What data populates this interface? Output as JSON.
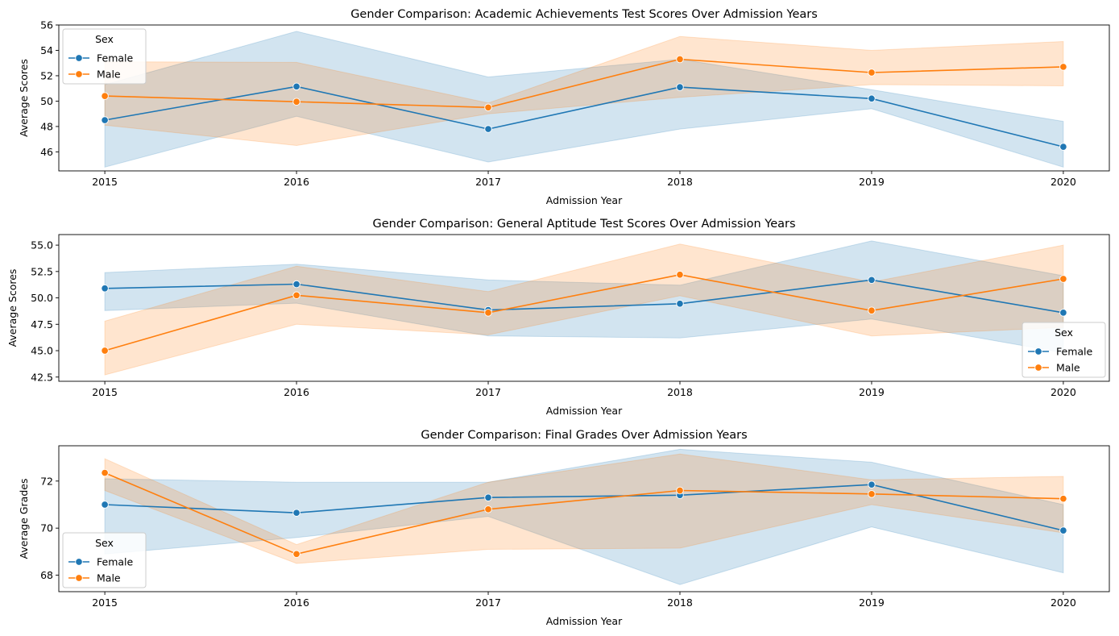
{
  "chart_data": [
    {
      "type": "line",
      "title": "Gender Comparison: Academic Achievements Test Scores Over Admission Years",
      "xlabel": "Admission Year",
      "ylabel": "Average Scores",
      "x": [
        2015,
        2016,
        2017,
        2018,
        2019,
        2020
      ],
      "xlim": [
        2014.76,
        2020.24
      ],
      "ylim": [
        44.5,
        56.0
      ],
      "yticks": [
        46,
        48,
        50,
        52,
        54,
        56
      ],
      "ytick_labels": [
        "46",
        "48",
        "50",
        "52",
        "54",
        "56"
      ],
      "legend": {
        "title": "Sex",
        "placement": "upper-left"
      },
      "series": [
        {
          "name": "Female",
          "color": "#1f77b4",
          "values": [
            48.5,
            51.15,
            47.8,
            51.1,
            50.2,
            46.4
          ],
          "ci_low": [
            44.8,
            48.8,
            45.2,
            47.8,
            49.4,
            44.8
          ],
          "ci_high": [
            51.3,
            55.5,
            51.9,
            53.3,
            50.9,
            48.4
          ]
        },
        {
          "name": "Male",
          "color": "#ff7f0e",
          "values": [
            50.4,
            49.95,
            49.5,
            53.3,
            52.25,
            52.7
          ],
          "ci_low": [
            48.1,
            46.5,
            49.0,
            50.3,
            51.3,
            51.2
          ],
          "ci_high": [
            53.1,
            53.05,
            49.85,
            55.1,
            54.0,
            54.7
          ]
        }
      ]
    },
    {
      "type": "line",
      "title": "Gender Comparison: General Aptitude Test Scores Over Admission Years",
      "xlabel": "Admission Year",
      "ylabel": "Average Scores",
      "x": [
        2015,
        2016,
        2017,
        2018,
        2019,
        2020
      ],
      "xlim": [
        2014.76,
        2020.24
      ],
      "ylim": [
        42.1,
        56.0
      ],
      "yticks": [
        42.5,
        45.0,
        47.5,
        50.0,
        52.5,
        55.0
      ],
      "ytick_labels": [
        "42.5",
        "45.0",
        "47.5",
        "50.0",
        "52.5",
        "55.0"
      ],
      "legend": {
        "title": "Sex",
        "placement": "lower-right"
      },
      "series": [
        {
          "name": "Female",
          "color": "#1f77b4",
          "values": [
            50.9,
            51.3,
            48.85,
            49.45,
            51.7,
            48.6
          ],
          "ci_low": [
            48.8,
            49.5,
            46.4,
            46.2,
            48.0,
            44.8
          ],
          "ci_high": [
            52.4,
            53.2,
            51.7,
            51.2,
            55.4,
            52.1
          ]
        },
        {
          "name": "Male",
          "color": "#ff7f0e",
          "values": [
            45.0,
            50.25,
            48.6,
            52.2,
            48.8,
            51.8
          ],
          "ci_low": [
            42.7,
            47.5,
            46.5,
            50.2,
            46.4,
            47.2
          ],
          "ci_high": [
            47.8,
            53.0,
            50.6,
            55.1,
            51.5,
            55.0
          ]
        }
      ]
    },
    {
      "type": "line",
      "title": "Gender Comparison: Final Grades Over Admission Years",
      "xlabel": "Admission Year",
      "ylabel": "Average Grades",
      "x": [
        2015,
        2016,
        2017,
        2018,
        2019,
        2020
      ],
      "xlim": [
        2014.76,
        2020.24
      ],
      "ylim": [
        67.3,
        73.5
      ],
      "yticks": [
        68,
        70,
        72
      ],
      "ytick_labels": [
        "68",
        "70",
        "72"
      ],
      "legend": {
        "title": "Sex",
        "placement": "lower-left"
      },
      "series": [
        {
          "name": "Female",
          "color": "#1f77b4",
          "values": [
            71.0,
            70.65,
            71.3,
            71.4,
            71.85,
            69.9
          ],
          "ci_low": [
            68.9,
            69.6,
            70.5,
            67.6,
            70.05,
            68.1
          ],
          "ci_high": [
            72.1,
            71.95,
            71.95,
            73.35,
            72.8,
            71.0
          ]
        },
        {
          "name": "Male",
          "color": "#ff7f0e",
          "values": [
            72.35,
            68.9,
            70.8,
            71.6,
            71.45,
            71.25
          ],
          "ci_low": [
            71.6,
            68.5,
            69.1,
            69.15,
            71.0,
            69.8
          ],
          "ci_high": [
            72.95,
            69.3,
            71.95,
            73.15,
            72.05,
            72.2
          ]
        }
      ]
    }
  ]
}
